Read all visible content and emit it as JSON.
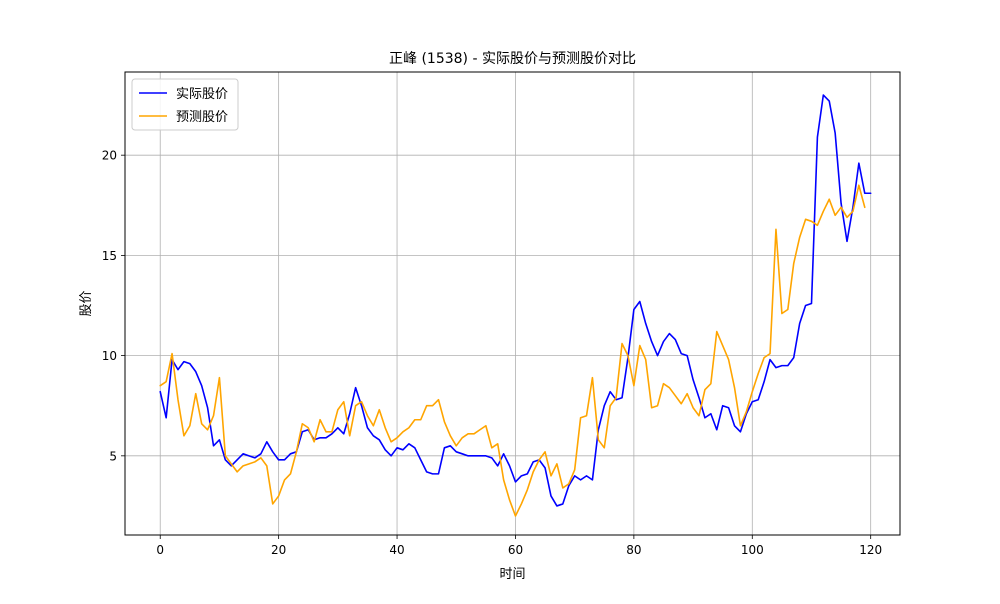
{
  "chart_data": {
    "type": "line",
    "title": "正峰 (1538) - 实际股价与预测股价对比",
    "xlabel": "时间",
    "ylabel": "股价",
    "xlim": [
      -5.95,
      124.95
    ],
    "ylim": [
      1.05,
      24.15
    ],
    "xticks": [
      0,
      20,
      40,
      60,
      80,
      100,
      120
    ],
    "yticks": [
      5,
      10,
      15,
      20
    ],
    "grid": true,
    "legend_position": "top-left",
    "series": [
      {
        "name": "实际股价",
        "color": "#0000ff",
        "values": [
          8.2,
          6.9,
          9.8,
          9.3,
          9.7,
          9.6,
          9.2,
          8.5,
          7.4,
          5.5,
          5.8,
          4.8,
          4.5,
          4.8,
          5.1,
          5.0,
          4.9,
          5.1,
          5.7,
          5.2,
          4.8,
          4.8,
          5.1,
          5.2,
          6.2,
          6.3,
          5.8,
          5.9,
          5.9,
          6.1,
          6.4,
          6.1,
          7.1,
          8.4,
          7.5,
          6.4,
          6.0,
          5.8,
          5.3,
          5.0,
          5.4,
          5.3,
          5.6,
          5.4,
          4.8,
          4.2,
          4.1,
          4.1,
          5.4,
          5.5,
          5.2,
          5.1,
          5.0,
          5.0,
          5.0,
          5.0,
          4.9,
          4.5,
          5.1,
          4.5,
          3.7,
          4.0,
          4.1,
          4.7,
          4.8,
          4.4,
          3.0,
          2.5,
          2.6,
          3.5,
          4.0,
          3.8,
          4.0,
          3.8,
          6.3,
          7.5,
          8.2,
          7.8,
          7.9,
          9.9,
          12.3,
          12.7,
          11.6,
          10.7,
          10.0,
          10.7,
          11.1,
          10.8,
          10.1,
          10.0,
          8.8,
          7.9,
          6.9,
          7.1,
          6.3,
          7.5,
          7.4,
          6.5,
          6.2,
          7.1,
          7.7,
          7.8,
          8.7,
          9.8,
          9.4,
          9.5,
          9.5,
          9.9,
          11.6,
          12.5,
          12.6,
          20.9,
          23.0,
          22.7,
          21.1,
          17.6,
          15.7,
          17.4,
          19.6,
          18.1,
          18.1
        ]
      },
      {
        "name": "预测股价",
        "color": "#ffa500",
        "values": [
          8.5,
          8.7,
          10.1,
          7.8,
          6.0,
          6.5,
          8.1,
          6.6,
          6.3,
          7.0,
          8.9,
          5.0,
          4.6,
          4.2,
          4.5,
          4.6,
          4.7,
          4.9,
          4.5,
          2.6,
          3.0,
          3.8,
          4.1,
          5.2,
          6.6,
          6.4,
          5.7,
          6.8,
          6.2,
          6.2,
          7.3,
          7.7,
          6.0,
          7.5,
          7.7,
          7.0,
          6.5,
          7.3,
          6.4,
          5.7,
          5.9,
          6.2,
          6.4,
          6.8,
          6.8,
          7.5,
          7.5,
          7.8,
          6.7,
          6.0,
          5.5,
          5.9,
          6.1,
          6.1,
          6.3,
          6.5,
          5.4,
          5.6,
          3.8,
          2.8,
          2.0,
          2.6,
          3.3,
          4.2,
          4.8,
          5.2,
          4.0,
          4.6,
          3.4,
          3.6,
          4.3,
          6.9,
          7.0,
          8.9,
          5.8,
          5.4,
          7.5,
          7.9,
          10.6,
          10.0,
          8.5,
          10.5,
          9.8,
          7.4,
          7.5,
          8.6,
          8.4,
          8.0,
          7.6,
          8.1,
          7.4,
          7.0,
          8.3,
          8.6,
          11.2,
          10.5,
          9.8,
          8.4,
          6.5,
          7.2,
          8.2,
          9.1,
          9.9,
          10.1,
          16.3,
          12.1,
          12.3,
          14.6,
          15.9,
          16.8,
          16.7,
          16.5,
          17.2,
          17.8,
          17.0,
          17.4,
          16.9,
          17.2,
          18.5,
          17.4
        ]
      }
    ]
  }
}
